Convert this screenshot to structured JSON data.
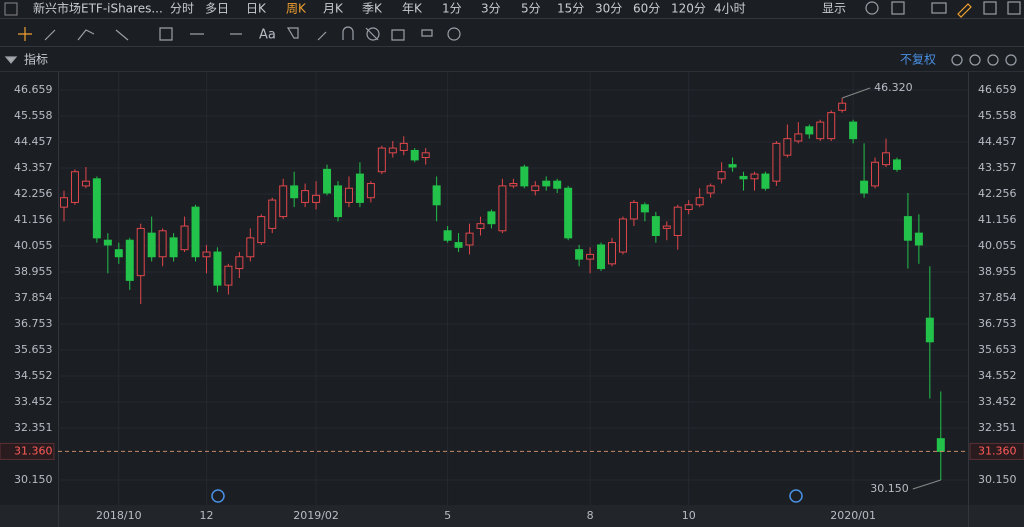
{
  "ui": {
    "symbol": "新兴市场ETF-iShares...",
    "tabs": [
      "分时",
      "多日",
      "日K",
      "周K",
      "月K",
      "季K",
      "年K",
      "1分",
      "3分",
      "5分",
      "15分",
      "30分",
      "60分",
      "120分",
      "4小时"
    ],
    "active_tab": "周K",
    "display": "显示",
    "text_tool": "Aa",
    "indicator": "指标",
    "adjust": "不复权"
  },
  "chart_data": {
    "type": "candlestick",
    "categories": [
      null,
      null,
      null,
      null,
      null,
      "2018/10",
      null,
      null,
      null,
      null,
      null,
      null,
      null,
      "12",
      null,
      null,
      null,
      null,
      null,
      null,
      null,
      null,
      null,
      "2019/02",
      null,
      null,
      null,
      null,
      null,
      null,
      null,
      null,
      null,
      null,
      null,
      "5",
      null,
      null,
      null,
      null,
      null,
      null,
      null,
      null,
      null,
      null,
      null,
      null,
      "8",
      null,
      null,
      null,
      null,
      null,
      null,
      null,
      null,
      "10",
      null,
      null,
      null,
      null,
      null,
      null,
      null,
      null,
      null,
      null,
      null,
      null,
      null,
      null,
      "2020/01",
      null,
      null,
      null,
      null,
      null,
      null,
      null,
      null
    ],
    "open": [
      41.7,
      41.9,
      42.6,
      42.9,
      40.3,
      39.9,
      40.3,
      38.8,
      40.6,
      39.6,
      40.4,
      39.9,
      41.7,
      39.6,
      39.8,
      38.4,
      39.1,
      39.6,
      40.2,
      40.8,
      41.3,
      42.6,
      41.9,
      41.9,
      43.3,
      42.6,
      41.9,
      43.1,
      42.1,
      43.2,
      44.0,
      44.1,
      44.1,
      43.8,
      42.6,
      40.7,
      40.2,
      40.1,
      40.8,
      41.5,
      40.7,
      42.6,
      43.4,
      42.4,
      42.8,
      42.8,
      42.5,
      39.9,
      39.5,
      40.1,
      39.3,
      39.8,
      41.2,
      41.8,
      41.3,
      40.8,
      40.5,
      41.6,
      41.8,
      42.3,
      42.9,
      43.5,
      43.0,
      42.9,
      43.1,
      42.8,
      43.9,
      44.5,
      45.1,
      44.6,
      44.6,
      45.8,
      45.3,
      42.8,
      42.6,
      43.5,
      43.7,
      41.3,
      40.6,
      37.0,
      31.9
    ],
    "high": [
      42.4,
      43.3,
      43.4,
      43.0,
      40.6,
      40.2,
      40.4,
      41.0,
      41.3,
      40.8,
      40.6,
      41.3,
      41.8,
      40.1,
      40.0,
      39.3,
      39.8,
      40.8,
      41.4,
      42.1,
      42.9,
      43.2,
      42.7,
      42.8,
      43.5,
      42.8,
      43.0,
      43.6,
      42.8,
      44.3,
      44.5,
      44.7,
      44.2,
      44.2,
      43.0,
      40.9,
      40.6,
      41.0,
      41.3,
      41.6,
      42.9,
      42.9,
      43.5,
      42.8,
      43.0,
      42.9,
      42.6,
      40.1,
      40.0,
      40.2,
      40.4,
      41.3,
      42.0,
      41.9,
      41.5,
      41.1,
      41.8,
      42.0,
      42.5,
      42.7,
      43.6,
      43.8,
      43.2,
      43.2,
      43.2,
      44.5,
      45.2,
      45.3,
      45.2,
      45.4,
      45.8,
      46.32,
      45.4,
      44.4,
      43.8,
      44.6,
      43.8,
      42.3,
      41.4,
      39.2,
      33.9
    ],
    "low": [
      41.1,
      41.8,
      42.5,
      40.2,
      38.9,
      39.3,
      38.2,
      37.6,
      39.4,
      39.2,
      39.4,
      39.8,
      39.4,
      38.9,
      38.1,
      38.0,
      38.7,
      39.4,
      40.1,
      40.6,
      41.2,
      41.7,
      41.7,
      41.6,
      42.2,
      41.1,
      41.7,
      41.7,
      41.9,
      43.1,
      43.8,
      43.9,
      43.6,
      43.5,
      41.1,
      40.2,
      39.8,
      39.7,
      40.5,
      40.8,
      40.6,
      42.5,
      42.5,
      42.2,
      42.4,
      42.3,
      40.3,
      39.2,
      38.9,
      39.0,
      39.2,
      39.7,
      40.9,
      41.1,
      40.2,
      40.3,
      39.9,
      41.4,
      41.7,
      42.1,
      42.7,
      43.2,
      42.4,
      42.4,
      42.4,
      42.6,
      43.8,
      44.4,
      44.6,
      44.5,
      44.5,
      45.7,
      44.4,
      42.1,
      42.5,
      43.4,
      43.2,
      39.1,
      39.3,
      33.6,
      30.15
    ],
    "close": [
      42.1,
      43.2,
      42.8,
      40.4,
      40.1,
      39.6,
      38.6,
      40.8,
      39.6,
      40.7,
      39.6,
      40.9,
      39.6,
      39.8,
      38.4,
      39.2,
      39.6,
      40.4,
      41.3,
      42.0,
      42.6,
      42.1,
      42.4,
      42.2,
      42.3,
      41.3,
      42.5,
      41.9,
      42.7,
      44.2,
      44.2,
      44.4,
      43.7,
      44.0,
      41.8,
      40.3,
      40.0,
      40.6,
      41.0,
      41.0,
      42.6,
      42.7,
      42.6,
      42.6,
      42.6,
      42.5,
      40.4,
      39.5,
      39.7,
      39.1,
      40.2,
      41.2,
      41.9,
      41.5,
      40.5,
      40.9,
      41.7,
      41.8,
      42.1,
      42.6,
      43.2,
      43.4,
      42.9,
      43.1,
      42.5,
      44.4,
      44.6,
      44.8,
      44.8,
      45.3,
      45.7,
      46.1,
      44.6,
      42.3,
      43.6,
      44.0,
      43.3,
      40.3,
      40.1,
      36.0,
      31.36
    ],
    "up_color": "#e0474c",
    "down_color": "#22c24b",
    "ylim": [
      29.092,
      47.294
    ],
    "yticks": [
      46.659,
      45.558,
      44.457,
      43.357,
      42.256,
      41.156,
      40.055,
      38.955,
      37.854,
      36.753,
      35.653,
      34.552,
      33.452,
      32.351,
      {
        "value": 30.15,
        "label": "30.150"
      }
    ],
    "last_price": {
      "value": 31.36,
      "label": "31.360"
    },
    "max_label": "46.320",
    "min_label": "30.150",
    "grid": true
  }
}
